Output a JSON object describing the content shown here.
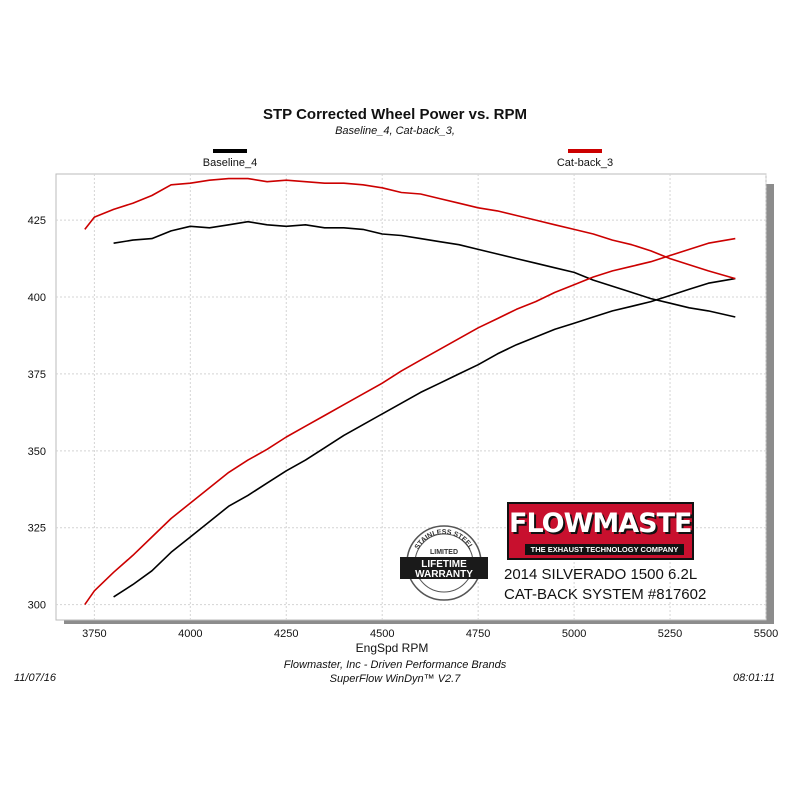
{
  "chart_data": {
    "type": "line",
    "title": "STP Corrected Wheel Power vs. RPM",
    "subtitle": "Baseline_4, Cat-back_3,",
    "xlabel": "EngSpd  RPM",
    "ylabel": "",
    "xlim": [
      3650,
      5500
    ],
    "ylim": [
      295,
      440
    ],
    "xticks": [
      3750,
      4000,
      4250,
      4500,
      4750,
      5000,
      5250,
      5500
    ],
    "yticks": [
      300,
      325,
      350,
      375,
      400,
      425
    ],
    "grid": true,
    "legend_position": "top",
    "series": [
      {
        "name": "Baseline_4",
        "color": "#000000",
        "measure": "torque",
        "x": [
          3800,
          3850,
          3900,
          3950,
          4000,
          4050,
          4100,
          4150,
          4200,
          4250,
          4300,
          4350,
          4400,
          4450,
          4500,
          4550,
          4600,
          4650,
          4700,
          4750,
          4800,
          4850,
          4900,
          4950,
          5000,
          5050,
          5100,
          5150,
          5200,
          5250,
          5300,
          5350,
          5420
        ],
        "y": [
          417.5,
          418.5,
          419,
          421.5,
          423,
          422.5,
          423.5,
          424.5,
          423.5,
          423,
          423.5,
          422.5,
          422.5,
          422,
          420.5,
          420,
          419,
          418,
          417,
          415.5,
          414,
          412.5,
          411,
          409.5,
          408,
          405.5,
          403.5,
          401.5,
          399.5,
          398,
          396.5,
          395.5,
          393.5
        ]
      },
      {
        "name": "Baseline_4",
        "color": "#000000",
        "measure": "power",
        "x": [
          3800,
          3850,
          3900,
          3950,
          4000,
          4050,
          4100,
          4150,
          4200,
          4250,
          4300,
          4350,
          4400,
          4450,
          4500,
          4550,
          4600,
          4650,
          4700,
          4750,
          4800,
          4850,
          4900,
          4950,
          5000,
          5050,
          5100,
          5150,
          5200,
          5250,
          5300,
          5350,
          5420
        ],
        "y": [
          302.5,
          306.5,
          311,
          317,
          322,
          327,
          332,
          335.5,
          339.5,
          343.5,
          347,
          351,
          355,
          358.5,
          362,
          365.5,
          369,
          372,
          375,
          378,
          381.5,
          384.5,
          387,
          389.5,
          391.5,
          393.5,
          395.5,
          397,
          398.5,
          400.5,
          402.5,
          404.5,
          406
        ]
      },
      {
        "name": "Cat-back_3",
        "color": "#cc0000",
        "measure": "torque",
        "x": [
          3725,
          3750,
          3800,
          3850,
          3900,
          3950,
          4000,
          4050,
          4100,
          4150,
          4200,
          4250,
          4300,
          4350,
          4400,
          4450,
          4500,
          4550,
          4600,
          4650,
          4700,
          4750,
          4800,
          4850,
          4900,
          4950,
          5000,
          5050,
          5100,
          5150,
          5200,
          5250,
          5300,
          5350,
          5420
        ],
        "y": [
          422,
          426,
          428.5,
          430.5,
          433,
          436.5,
          437,
          438,
          438.5,
          438.5,
          437.5,
          438,
          437.5,
          437,
          437,
          436.5,
          435.5,
          434,
          433.5,
          432,
          430.5,
          429,
          428,
          426.5,
          425,
          423.5,
          422,
          420.5,
          418.5,
          417,
          415,
          412.5,
          410.5,
          408.5,
          406
        ]
      },
      {
        "name": "Cat-back_3",
        "color": "#cc0000",
        "measure": "power",
        "x": [
          3725,
          3750,
          3800,
          3850,
          3900,
          3950,
          4000,
          4050,
          4100,
          4150,
          4200,
          4250,
          4300,
          4350,
          4400,
          4450,
          4500,
          4550,
          4600,
          4650,
          4700,
          4750,
          4800,
          4850,
          4900,
          4950,
          5000,
          5050,
          5100,
          5150,
          5200,
          5250,
          5300,
          5350,
          5420
        ],
        "y": [
          300,
          304.5,
          310.5,
          316,
          322,
          328,
          333,
          338,
          343,
          347,
          350.5,
          354.5,
          358,
          361.5,
          365,
          368.5,
          372,
          376,
          379.5,
          383,
          386.5,
          390,
          393,
          396,
          398.5,
          401.5,
          404,
          406.5,
          408.5,
          410,
          411.5,
          413.5,
          415.5,
          417.5,
          419
        ]
      }
    ]
  },
  "legend": [
    {
      "label": "Baseline_4",
      "color": "#000000"
    },
    {
      "label": "Cat-back_3",
      "color": "#cc0000"
    }
  ],
  "overlay": {
    "brand": "FLOWMASTER",
    "brand_mark": "®",
    "tagline": "THE EXHAUST TECHNOLOGY COMPANY",
    "vehicle_line1": "2014 SILVERADO 1500 6.2L",
    "vehicle_line2": "CAT-BACK SYSTEM #817602",
    "badge_top": "STAINLESS STEEL",
    "badge_mid": "LIMITED",
    "badge_line1": "LIFETIME",
    "badge_line2": "WARRANTY"
  },
  "footer": {
    "date": "11/07/16",
    "company": "Flowmaster, Inc - Driven Performance Brands",
    "software": "SuperFlow WinDyn™ V2.7",
    "time": "08:01:11"
  }
}
